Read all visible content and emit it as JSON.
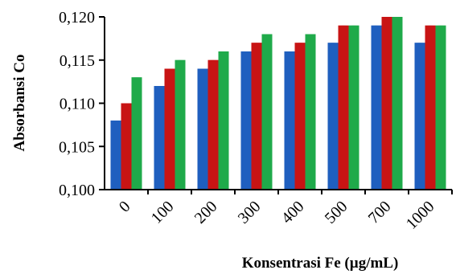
{
  "chart_data": {
    "type": "bar",
    "title": "",
    "xlabel": "Konsentrasi Fe (µg/mL)",
    "ylabel": "Absorbansi Co",
    "categories": [
      "0",
      "100",
      "200",
      "300",
      "400",
      "500",
      "700",
      "1000"
    ],
    "series": [
      {
        "color": "#1f5fbf",
        "values": [
          0.108,
          0.112,
          0.114,
          0.116,
          0.116,
          0.117,
          0.119,
          0.117
        ]
      },
      {
        "color": "#c81414",
        "values": [
          0.11,
          0.114,
          0.115,
          0.117,
          0.117,
          0.119,
          0.12,
          0.119
        ]
      },
      {
        "color": "#1faa4a",
        "values": [
          0.113,
          0.115,
          0.116,
          0.118,
          0.118,
          0.119,
          0.12,
          0.119
        ]
      }
    ],
    "ylim": [
      0.1,
      0.12
    ],
    "yticks": [
      "0,100",
      "0,105",
      "0,110",
      "0,115",
      "0,120"
    ],
    "grid": false,
    "legend": "none"
  }
}
